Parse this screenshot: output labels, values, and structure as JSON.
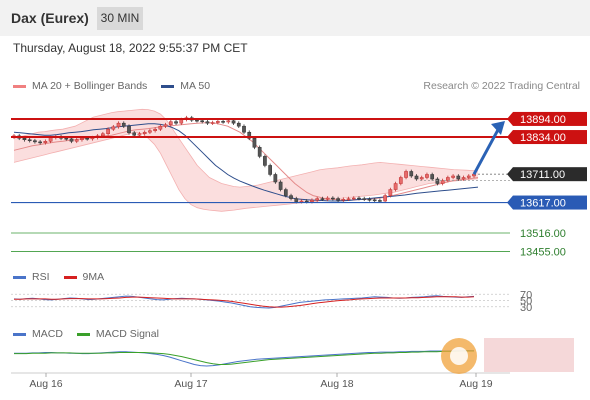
{
  "header": {
    "title": "Dax (Eurex)",
    "timeframe": "30 MIN"
  },
  "datetime": "Thursday, August 18, 2022 9:55:37 PM CET",
  "main_legend": [
    {
      "label": "MA 20 + Bollinger Bands",
      "color": "#f08080"
    },
    {
      "label": "MA 50",
      "color": "#2e4e8c"
    }
  ],
  "credit": "Research © 2022 Trading Central",
  "rsi_legend": [
    {
      "label": "RSI",
      "color": "#4a74c9"
    },
    {
      "label": "9MA",
      "color": "#d62020"
    }
  ],
  "macd_legend": [
    {
      "label": "MACD",
      "color": "#4a74c9"
    },
    {
      "label": "MACD Signal",
      "color": "#3aa02a"
    }
  ],
  "colors": {
    "resistance": "#cc1111",
    "support": "#2a5bb5",
    "target": "#3a9a3a",
    "current": "#2b2b2b",
    "arrow": "#2a62b5",
    "bollinger_fill": "#fbdada",
    "candle_up": "#c03030",
    "candle_down": "#333333"
  },
  "chart_data": [
    {
      "type": "candlestick",
      "name": "price",
      "x_ticks": [
        "Aug 16",
        "Aug 17",
        "Aug 18",
        "Aug 19"
      ],
      "ylim": [
        13420,
        13970
      ],
      "levels": [
        {
          "value": 13894.0,
          "label": "13894.00",
          "kind": "resistance"
        },
        {
          "value": 13834.0,
          "label": "13834.00",
          "kind": "resistance"
        },
        {
          "value": 13711.0,
          "label": "13711.00",
          "kind": "current"
        },
        {
          "value": 13617.0,
          "label": "13617.00",
          "kind": "support"
        },
        {
          "value": 13516.0,
          "label": "13516.00",
          "kind": "target"
        },
        {
          "value": 13455.0,
          "label": "13455.00",
          "kind": "target"
        }
      ],
      "close": [
        13838,
        13830,
        13825,
        13822,
        13818,
        13815,
        13820,
        13832,
        13835,
        13830,
        13828,
        13820,
        13825,
        13830,
        13828,
        13832,
        13838,
        13845,
        13860,
        13868,
        13880,
        13870,
        13848,
        13840,
        13845,
        13850,
        13855,
        13860,
        13870,
        13875,
        13885,
        13880,
        13892,
        13898,
        13890,
        13888,
        13885,
        13880,
        13882,
        13886,
        13884,
        13888,
        13880,
        13870,
        13850,
        13830,
        13800,
        13770,
        13740,
        13710,
        13685,
        13660,
        13640,
        13630,
        13620,
        13622,
        13620,
        13625,
        13630,
        13628,
        13632,
        13630,
        13625,
        13628,
        13630,
        13632,
        13630,
        13628,
        13626,
        13624,
        13622,
        13640,
        13660,
        13680,
        13700,
        13720,
        13705,
        13695,
        13700,
        13710,
        13695,
        13680,
        13690,
        13700,
        13705,
        13695,
        13700,
        13705,
        13711
      ],
      "ma20": [
        13790,
        13795,
        13800,
        13805,
        13808,
        13812,
        13815,
        13818,
        13820,
        13823,
        13825,
        13828,
        13830,
        13833,
        13836,
        13838,
        13840,
        13845,
        13850,
        13855,
        13858,
        13860,
        13862,
        13865,
        13868,
        13870,
        13872,
        13874,
        13876,
        13878,
        13880,
        13881,
        13882,
        13880,
        13875,
        13870,
        13860,
        13850,
        13835,
        13820,
        13800,
        13780,
        13760,
        13740,
        13720,
        13700,
        13680,
        13665,
        13650,
        13640,
        13635,
        13630,
        13628,
        13626,
        13625,
        13625,
        13626,
        13627,
        13628,
        13630,
        13632,
        13635,
        13640,
        13645,
        13650,
        13655,
        13660,
        13665,
        13670,
        13675,
        13680,
        13685,
        13690,
        13692,
        13695,
        13697,
        13700
      ],
      "bb_upper": [
        13830,
        13835,
        13840,
        13845,
        13850,
        13852,
        13855,
        13858,
        13860,
        13865,
        13870,
        13880,
        13890,
        13900,
        13905,
        13910,
        13915,
        13918,
        13920,
        13922,
        13924,
        13926,
        13925,
        13920,
        13910,
        13890,
        13860,
        13830,
        13800,
        13770,
        13740,
        13720,
        13700,
        13690,
        13680,
        13675,
        13670,
        13668,
        13670,
        13672,
        13675,
        13680,
        13685,
        13690,
        13695,
        13700,
        13705,
        13710,
        13715,
        13720,
        13725,
        13728,
        13730,
        13732,
        13735,
        13738,
        13740,
        13742,
        13745,
        13748,
        13750,
        13748,
        13746,
        13744,
        13742,
        13740,
        13738,
        13736,
        13734,
        13732,
        13730,
        13728,
        13726,
        13725,
        13724,
        13723,
        13722
      ],
      "bb_lower": [
        13750,
        13755,
        13760,
        13765,
        13770,
        13775,
        13780,
        13785,
        13790,
        13795,
        13800,
        13805,
        13810,
        13815,
        13820,
        13825,
        13830,
        13835,
        13840,
        13845,
        13850,
        13845,
        13830,
        13810,
        13780,
        13740,
        13700,
        13660,
        13630,
        13610,
        13600,
        13595,
        13592,
        13590,
        13588,
        13590,
        13592,
        13595,
        13598,
        13600,
        13602,
        13604,
        13606,
        13608,
        13610,
        13612,
        13614,
        13616,
        13618,
        13620,
        13622,
        13625,
        13628,
        13630,
        13632,
        13634,
        13636,
        13638,
        13640,
        13642,
        13645,
        13648,
        13650,
        13655,
        13660,
        13665,
        13670,
        13675,
        13680,
        13682,
        13684,
        13686,
        13688,
        13690,
        13692,
        13694,
        13696
      ],
      "ma50": [
        13850,
        13848,
        13846,
        13844,
        13842,
        13840,
        13840,
        13842,
        13845,
        13848,
        13850,
        13852,
        13855,
        13858,
        13860,
        13862,
        13865,
        13868,
        13870,
        13872,
        13874,
        13876,
        13878,
        13878,
        13876,
        13872,
        13865,
        13855,
        13840,
        13820,
        13800,
        13780,
        13760,
        13740,
        13725,
        13710,
        13698,
        13688,
        13680,
        13672,
        13665,
        13658,
        13652,
        13646,
        13640,
        13635,
        13630,
        13628,
        13626,
        13625,
        13624,
        13623,
        13622,
        13622,
        13623,
        13624,
        13626,
        13628,
        13630,
        13632,
        13634,
        13636,
        13638,
        13640,
        13642,
        13645,
        13648,
        13650,
        13652,
        13654,
        13656,
        13658,
        13660,
        13662,
        13664,
        13666,
        13668
      ]
    },
    {
      "type": "line",
      "name": "rsi",
      "levels": [
        {
          "value": 70,
          "label": "70"
        },
        {
          "value": 50,
          "label": "50"
        },
        {
          "value": 30,
          "label": "30"
        }
      ],
      "ylim": [
        10,
        90
      ]
    },
    {
      "type": "line",
      "name": "macd"
    }
  ]
}
